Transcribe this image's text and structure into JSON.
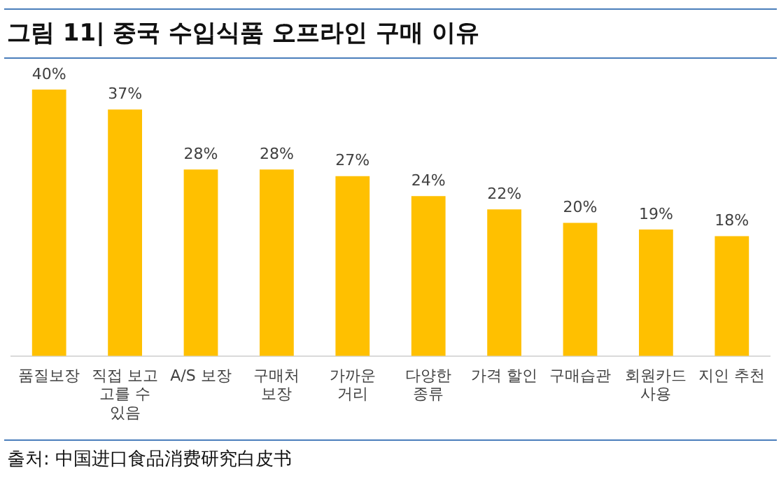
{
  "chart_data": {
    "type": "bar",
    "title": "그림 11| 중국 수입식품 오프라인 구매 이유",
    "categories": [
      "품질보장",
      "직접 보고 고를 수 있음",
      "A/S 보장",
      "구매처 보장",
      "가까운 거리",
      "다양한 종류",
      "가격 할인",
      "구매습관",
      "회원카드 사용",
      "지인 추천"
    ],
    "values": [
      40,
      37,
      28,
      28,
      27,
      24,
      22,
      20,
      19,
      18
    ],
    "value_labels": [
      "40%",
      "37%",
      "28%",
      "28%",
      "27%",
      "24%",
      "22%",
      "20%",
      "19%",
      "18%"
    ],
    "color": "#ffc000",
    "grid": false,
    "legend": false,
    "annotations": [
      "출처: 中国进口食品消费研究白皮书"
    ]
  }
}
